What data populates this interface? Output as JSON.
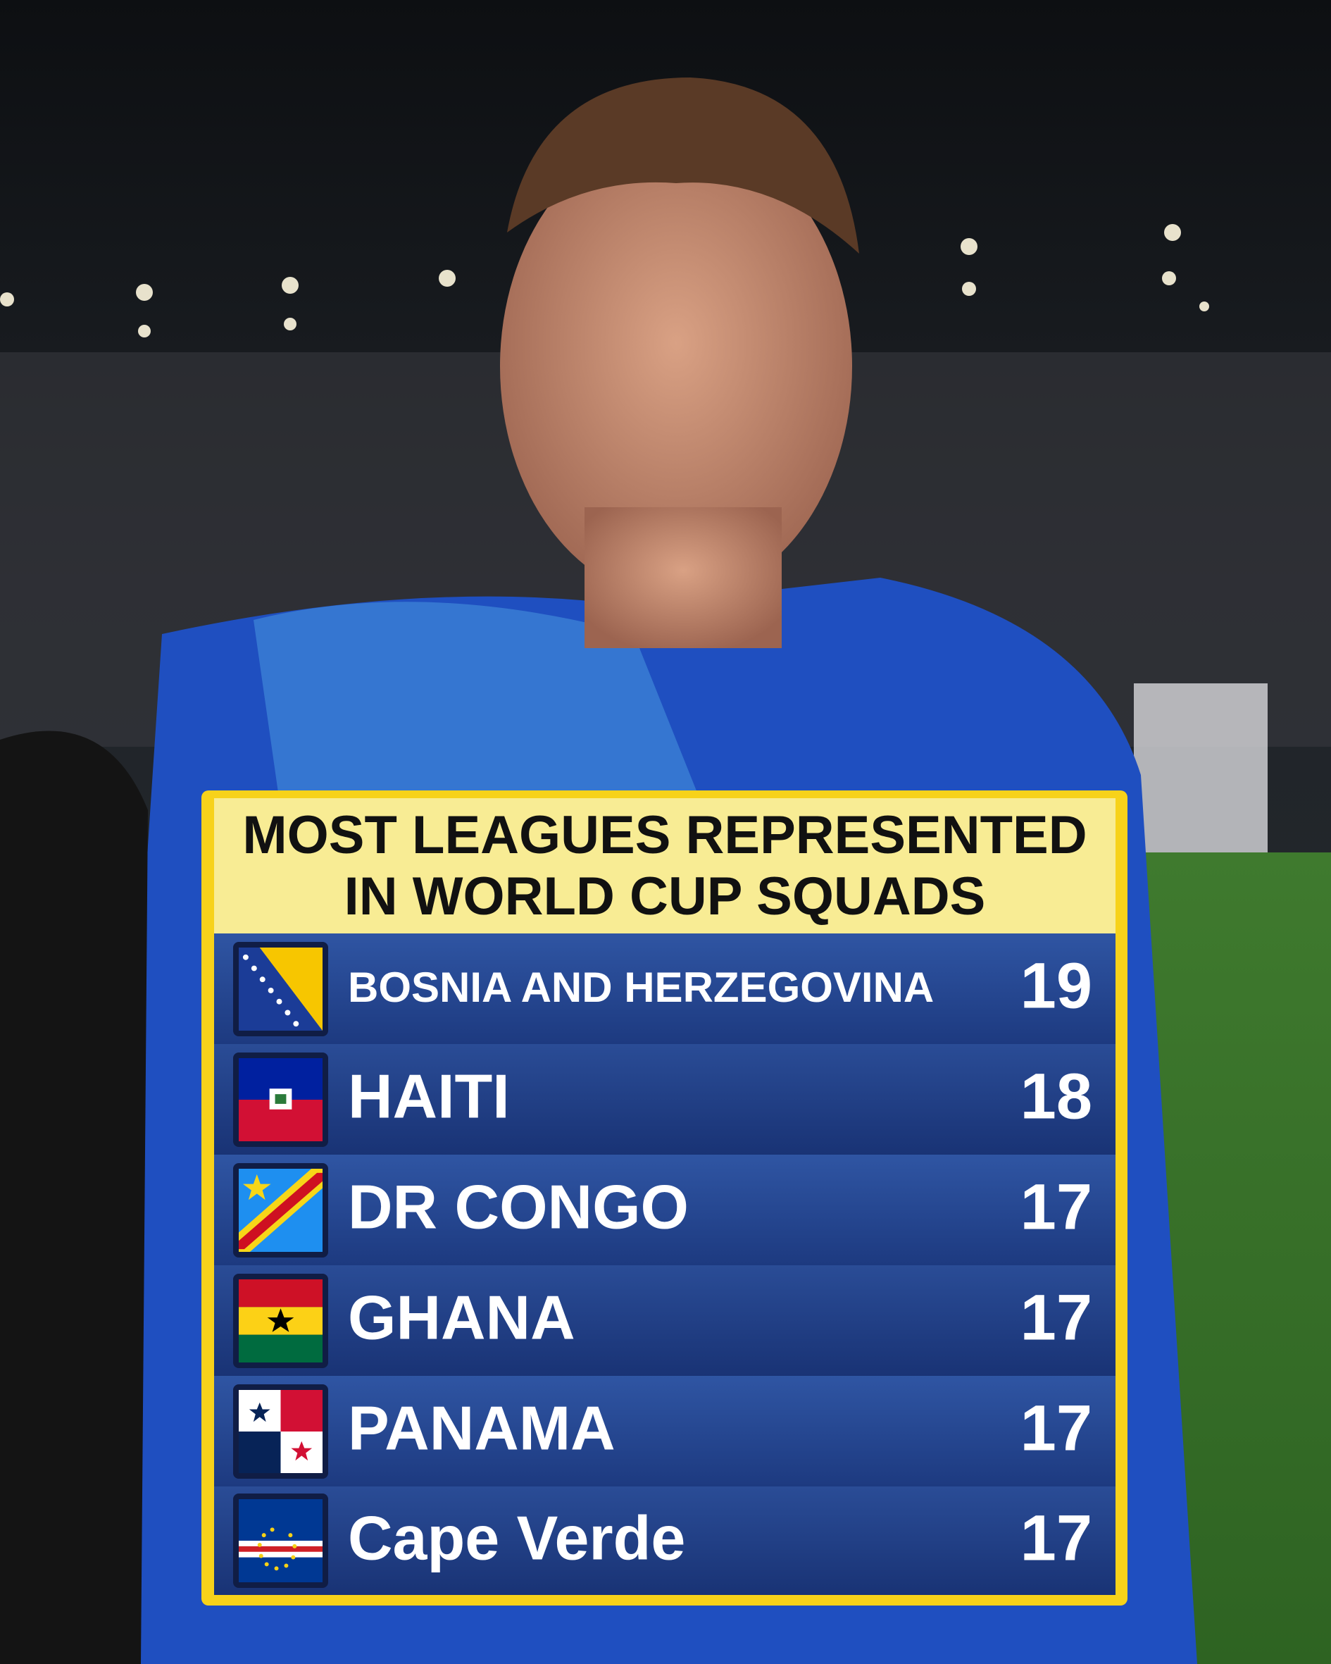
{
  "header": {
    "title_lines": [
      "MOST LEAGUES REPRESENTED",
      "IN WORLD CUP SQUADS"
    ]
  },
  "table": {
    "rows": [
      [
        "BOSNIA AND HERZEGOVINA",
        19
      ],
      [
        "HAITI",
        18
      ],
      [
        "DR CONGO",
        17
      ],
      [
        "GHANA",
        17
      ],
      [
        "PANAMA",
        17
      ],
      [
        "Cape Verde",
        17
      ]
    ]
  }
}
